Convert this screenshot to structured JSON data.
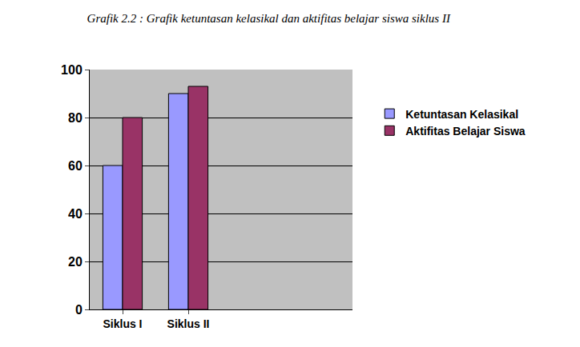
{
  "chart_data": {
    "type": "bar",
    "title": "Grafik 2.2 : Grafik ketuntasan kelasikal dan aktifitas belajar siswa siklus II",
    "categories": [
      "Siklus I",
      "Siklus II",
      null,
      null
    ],
    "series": [
      {
        "name": "Ketuntasan Kelasikal",
        "color": "#9999ff",
        "values": [
          60,
          90,
          null,
          null
        ]
      },
      {
        "name": "Aktifitas Belajar Siswa",
        "color": "#993366",
        "values": [
          80,
          93,
          null,
          null
        ]
      }
    ],
    "ylim": [
      0,
      100
    ],
    "yticks": [
      0,
      20,
      40,
      60,
      80,
      100
    ],
    "grid": true,
    "legend": "right"
  }
}
